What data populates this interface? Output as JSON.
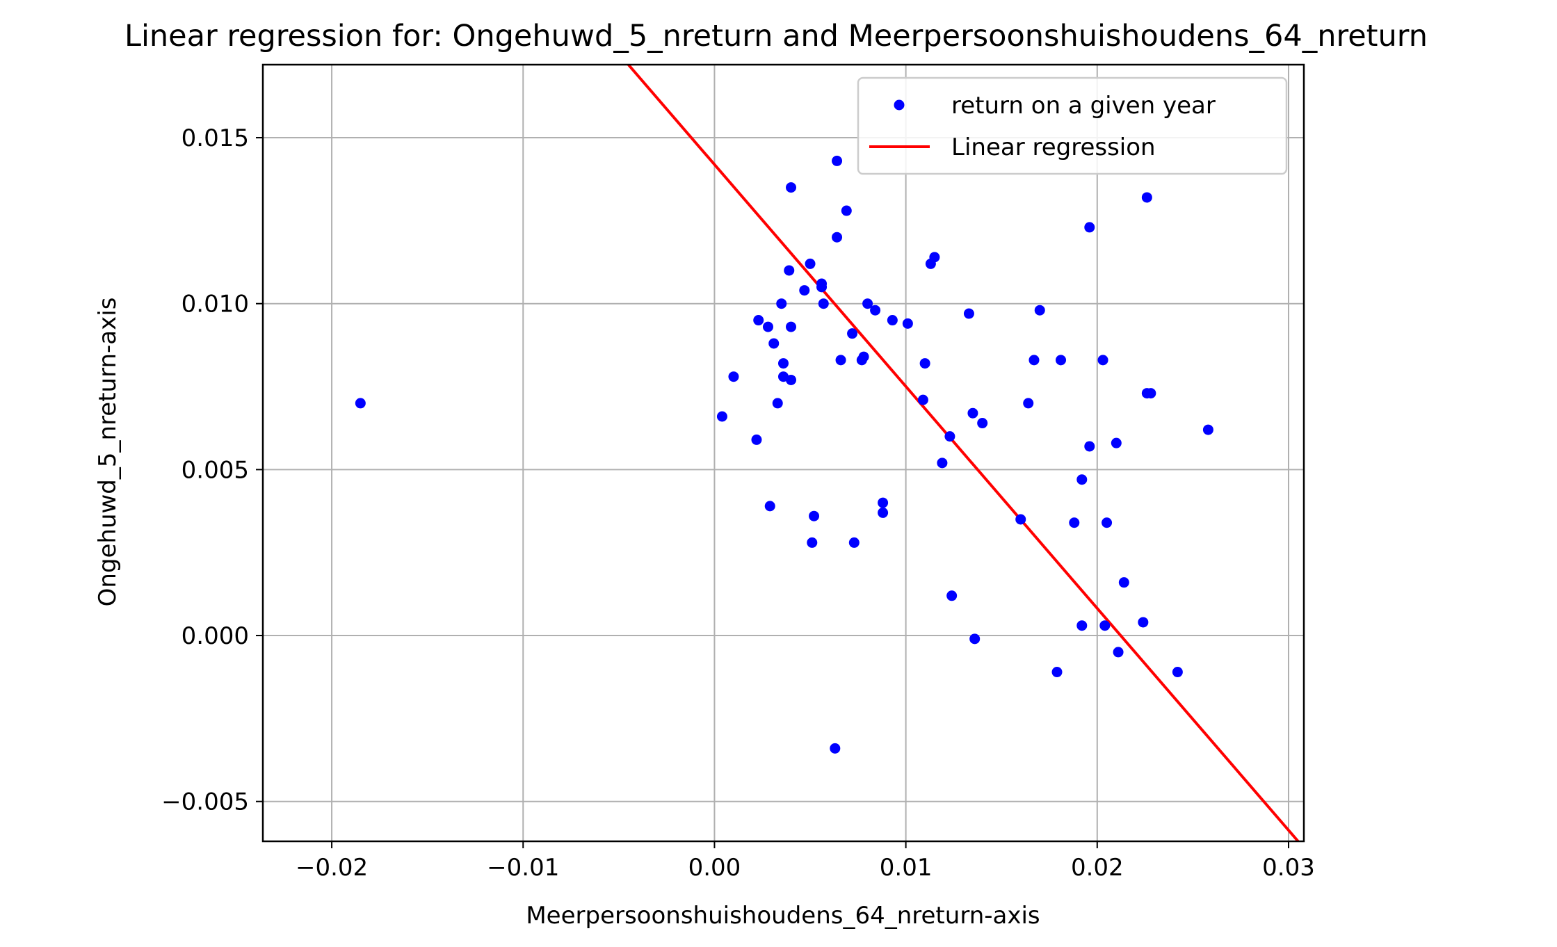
{
  "chart_data": {
    "type": "scatter",
    "title": "Linear regression for: Ongehuwd_5_nreturn and Meerpersoonshuishoudens_64_nreturn",
    "xlabel": "Meerpersoonshuishoudens_64_nreturn-axis",
    "ylabel": "Ongehuwd_5_nreturn-axis",
    "xlim": [
      -0.0236,
      0.0308
    ],
    "ylim": [
      -0.0062,
      0.0172
    ],
    "xticks": [
      -0.02,
      -0.01,
      0.0,
      0.01,
      0.02,
      0.03
    ],
    "xtick_labels": [
      "−0.02",
      "−0.01",
      "0.00",
      "0.01",
      "0.02",
      "0.03"
    ],
    "yticks": [
      -0.005,
      0.0,
      0.005,
      0.01,
      0.015
    ],
    "ytick_labels": [
      "−0.005",
      "0.000",
      "0.005",
      "0.010",
      "0.015"
    ],
    "grid": true,
    "legend_position": "top-right",
    "colors": {
      "scatter": "#0000ff",
      "line": "#ff0000",
      "grid": "#b0b0b0"
    },
    "series": [
      {
        "name": "return on a given year",
        "type": "scatter",
        "color": "#0000ff",
        "points": [
          [
            -0.0185,
            0.007
          ],
          [
            0.0004,
            0.0066
          ],
          [
            0.001,
            0.0078
          ],
          [
            0.0022,
            0.0059
          ],
          [
            0.0023,
            0.0095
          ],
          [
            0.0028,
            0.0093
          ],
          [
            0.0029,
            0.0039
          ],
          [
            0.0031,
            0.0088
          ],
          [
            0.0033,
            0.007
          ],
          [
            0.0035,
            0.01
          ],
          [
            0.0036,
            0.0082
          ],
          [
            0.0036,
            0.0078
          ],
          [
            0.0039,
            0.011
          ],
          [
            0.004,
            0.0077
          ],
          [
            0.004,
            0.0093
          ],
          [
            0.004,
            0.0135
          ],
          [
            0.0047,
            0.0104
          ],
          [
            0.005,
            0.0112
          ],
          [
            0.0051,
            0.0028
          ],
          [
            0.0052,
            0.0036
          ],
          [
            0.0056,
            0.0105
          ],
          [
            0.0056,
            0.0106
          ],
          [
            0.0057,
            0.01
          ],
          [
            0.0063,
            -0.0034
          ],
          [
            0.0064,
            0.0143
          ],
          [
            0.0064,
            0.012
          ],
          [
            0.0066,
            0.0083
          ],
          [
            0.0069,
            0.0128
          ],
          [
            0.0072,
            0.0091
          ],
          [
            0.0073,
            0.0028
          ],
          [
            0.0077,
            0.0083
          ],
          [
            0.0078,
            0.0084
          ],
          [
            0.008,
            0.01
          ],
          [
            0.0084,
            0.0098
          ],
          [
            0.0088,
            0.004
          ],
          [
            0.0088,
            0.0037
          ],
          [
            0.0093,
            0.0095
          ],
          [
            0.0101,
            0.0094
          ],
          [
            0.0109,
            0.0071
          ],
          [
            0.011,
            0.0082
          ],
          [
            0.0113,
            0.0112
          ],
          [
            0.0115,
            0.0114
          ],
          [
            0.0119,
            0.0052
          ],
          [
            0.0123,
            0.006
          ],
          [
            0.0124,
            0.0012
          ],
          [
            0.0133,
            0.0097
          ],
          [
            0.0135,
            0.0067
          ],
          [
            0.0136,
            -0.0001
          ],
          [
            0.014,
            0.0064
          ],
          [
            0.016,
            0.0035
          ],
          [
            0.0164,
            0.007
          ],
          [
            0.0167,
            0.0083
          ],
          [
            0.017,
            0.0098
          ],
          [
            0.0179,
            -0.0011
          ],
          [
            0.0181,
            0.0083
          ],
          [
            0.0188,
            0.0034
          ],
          [
            0.0192,
            0.0047
          ],
          [
            0.0192,
            0.0003
          ],
          [
            0.0196,
            0.0123
          ],
          [
            0.0196,
            0.0057
          ],
          [
            0.0203,
            0.0083
          ],
          [
            0.0204,
            0.0003
          ],
          [
            0.0205,
            0.0034
          ],
          [
            0.021,
            0.0058
          ],
          [
            0.0211,
            -0.0005
          ],
          [
            0.0214,
            0.0016
          ],
          [
            0.0224,
            0.0004
          ],
          [
            0.0226,
            0.0073
          ],
          [
            0.0226,
            0.0132
          ],
          [
            0.0228,
            0.0073
          ],
          [
            0.0242,
            -0.0011
          ],
          [
            0.0258,
            0.0062
          ]
        ]
      },
      {
        "name": "Linear regression",
        "type": "line",
        "color": "#ff0000",
        "points": [
          [
            -0.0045,
            0.0172
          ],
          [
            0.0305,
            -0.0062
          ]
        ]
      }
    ]
  }
}
